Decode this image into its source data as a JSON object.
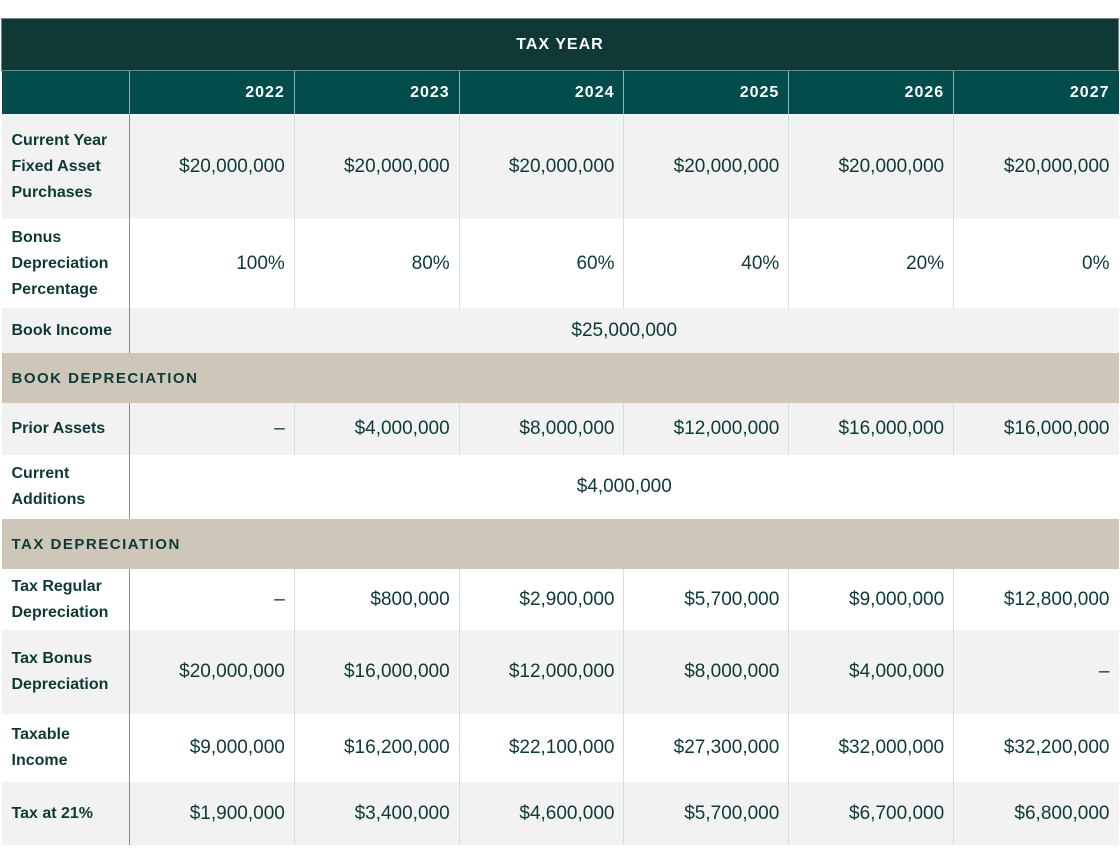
{
  "title": "TAX YEAR",
  "years": [
    "2022",
    "2023",
    "2024",
    "2025",
    "2026",
    "2027"
  ],
  "rows": [
    {
      "label": "Current Year Fixed Asset Purchases",
      "values": [
        "$20,000,000",
        "$20,000,000",
        "$20,000,000",
        "$20,000,000",
        "$20,000,000",
        "$20,000,000"
      ]
    },
    {
      "label": "Bonus Depreciation Percentage",
      "values": [
        "100%",
        "80%",
        "60%",
        "40%",
        "20%",
        "0%"
      ]
    },
    {
      "label": "Book Income",
      "span_value": "$25,000,000"
    }
  ],
  "book_section": {
    "title": "BOOK DEPRECIATION",
    "rows": [
      {
        "label": "Prior Assets",
        "values": [
          "–",
          "$4,000,000",
          "$8,000,000",
          "$12,000,000",
          "$16,000,000",
          "$16,000,000"
        ]
      },
      {
        "label": "Current Additions",
        "span_value": "$4,000,000"
      }
    ]
  },
  "tax_section": {
    "title": "TAX DEPRECIATION",
    "rows": [
      {
        "label": "Tax Regular Depreciation",
        "values": [
          "–",
          "$800,000",
          "$2,900,000",
          "$5,700,000",
          "$9,000,000",
          "$12,800,000"
        ]
      },
      {
        "label": "Tax Bonus Depreciation",
        "values": [
          "$20,000,000",
          "$16,000,000",
          "$12,000,000",
          "$8,000,000",
          "$4,000,000",
          "–"
        ]
      },
      {
        "label": "Taxable Income",
        "values": [
          "$9,000,000",
          "$16,200,000",
          "$22,100,000",
          "$27,300,000",
          "$32,000,000",
          "$32,200,000"
        ]
      },
      {
        "label": "Tax at 21%",
        "values": [
          "$1,900,000",
          "$3,400,000",
          "$4,600,000",
          "$5,700,000",
          "$6,700,000",
          "$6,800,000"
        ]
      }
    ]
  },
  "colors": {
    "title_bg": "#0f3837",
    "header_bg": "#024d4c",
    "section_bg": "#cec6b9",
    "text": "#0e3a36"
  }
}
